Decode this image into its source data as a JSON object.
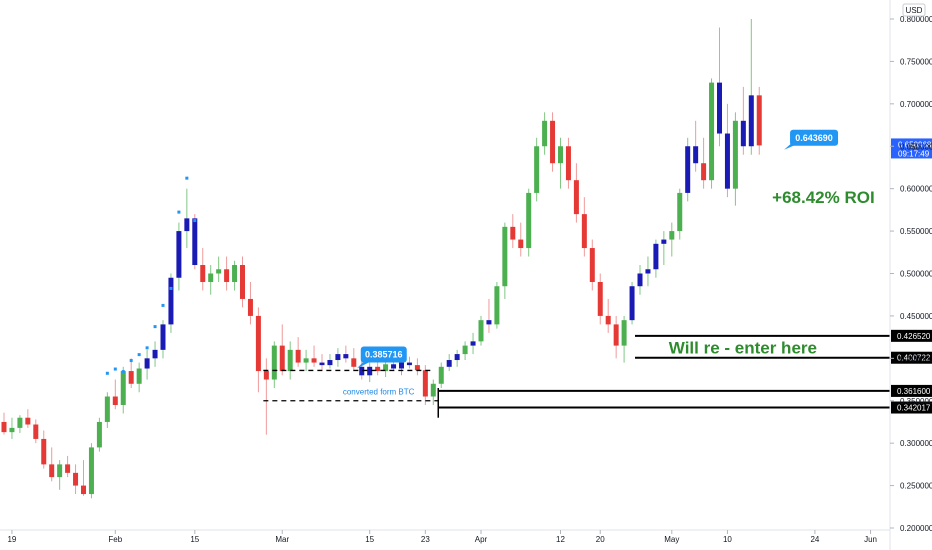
{
  "chart_data": {
    "type": "candlestick",
    "currency": "USD",
    "y_axis": {
      "min": 0.2,
      "max": 0.82,
      "ticks": [
        "0.800000",
        "0.750000",
        "0.700000",
        "0.650000",
        "0.600000",
        "0.550000",
        "0.500000",
        "0.450000",
        "0.400000",
        "0.350000",
        "0.300000",
        "0.250000",
        "0.200000"
      ]
    },
    "x_axis": {
      "ticks": [
        {
          "label": "19",
          "index": 1
        },
        {
          "label": "Feb",
          "index": 14
        },
        {
          "label": "15",
          "index": 24
        },
        {
          "label": "Mar",
          "index": 35
        },
        {
          "label": "15",
          "index": 46
        },
        {
          "label": "23",
          "index": 53
        },
        {
          "label": "Apr",
          "index": 60
        },
        {
          "label": "12",
          "index": 70
        },
        {
          "label": "20",
          "index": 75
        },
        {
          "label": "May",
          "index": 84
        },
        {
          "label": "10",
          "index": 91
        },
        {
          "label": "24",
          "index": 102
        },
        {
          "label": "Jun",
          "index": 109
        }
      ],
      "bar_count": 112
    },
    "colors": {
      "up": "#4caf50",
      "down": "#e53935",
      "up_ha": "#1a1ab5",
      "wick": "#81c784",
      "wick_down": "#ef9a9a",
      "annotation_blue": "#2196f3",
      "roi_green": "#2e8b2e",
      "price_tag": "#2962ff"
    },
    "candles": [
      [
        0.325,
        0.336,
        0.31,
        0.313
      ],
      [
        0.313,
        0.33,
        0.305,
        0.318
      ],
      [
        0.318,
        0.333,
        0.312,
        0.33
      ],
      [
        0.33,
        0.34,
        0.318,
        0.322
      ],
      [
        0.322,
        0.328,
        0.3,
        0.305
      ],
      [
        0.305,
        0.315,
        0.27,
        0.275
      ],
      [
        0.275,
        0.295,
        0.255,
        0.26
      ],
      [
        0.26,
        0.28,
        0.245,
        0.275
      ],
      [
        0.275,
        0.285,
        0.26,
        0.265
      ],
      [
        0.265,
        0.275,
        0.24,
        0.25
      ],
      [
        0.25,
        0.28,
        0.238,
        0.24
      ],
      [
        0.24,
        0.3,
        0.235,
        0.295
      ],
      [
        0.295,
        0.33,
        0.29,
        0.325
      ],
      [
        0.325,
        0.36,
        0.318,
        0.355
      ],
      [
        0.355,
        0.375,
        0.34,
        0.345
      ],
      [
        0.345,
        0.39,
        0.335,
        0.385
      ],
      [
        0.385,
        0.4,
        0.365,
        0.37
      ],
      [
        0.37,
        0.395,
        0.36,
        0.388
      ],
      [
        0.388,
        0.41,
        0.375,
        0.4
      ],
      [
        0.4,
        0.42,
        0.39,
        0.41
      ],
      [
        0.41,
        0.445,
        0.4,
        0.44
      ],
      [
        0.44,
        0.5,
        0.43,
        0.495
      ],
      [
        0.495,
        0.56,
        0.48,
        0.55
      ],
      [
        0.55,
        0.6,
        0.53,
        0.565
      ],
      [
        0.565,
        0.57,
        0.505,
        0.51
      ],
      [
        0.51,
        0.53,
        0.48,
        0.49
      ],
      [
        0.49,
        0.51,
        0.475,
        0.5
      ],
      [
        0.5,
        0.52,
        0.49,
        0.505
      ],
      [
        0.505,
        0.52,
        0.48,
        0.49
      ],
      [
        0.49,
        0.515,
        0.48,
        0.51
      ],
      [
        0.51,
        0.52,
        0.46,
        0.47
      ],
      [
        0.47,
        0.49,
        0.44,
        0.45
      ],
      [
        0.45,
        0.46,
        0.36,
        0.385
      ],
      [
        0.385,
        0.4,
        0.31,
        0.375
      ],
      [
        0.375,
        0.42,
        0.365,
        0.415
      ],
      [
        0.415,
        0.44,
        0.38,
        0.385
      ],
      [
        0.385,
        0.42,
        0.375,
        0.41
      ],
      [
        0.41,
        0.425,
        0.39,
        0.395
      ],
      [
        0.395,
        0.41,
        0.385,
        0.4
      ],
      [
        0.4,
        0.415,
        0.39,
        0.395
      ],
      [
        0.395,
        0.405,
        0.385,
        0.392
      ],
      [
        0.392,
        0.405,
        0.388,
        0.398
      ],
      [
        0.398,
        0.412,
        0.39,
        0.405
      ],
      [
        0.405,
        0.415,
        0.395,
        0.4
      ],
      [
        0.4,
        0.412,
        0.385,
        0.39
      ],
      [
        0.39,
        0.4,
        0.375,
        0.38
      ],
      [
        0.38,
        0.395,
        0.372,
        0.39
      ],
      [
        0.39,
        0.4,
        0.38,
        0.385
      ],
      [
        0.385,
        0.398,
        0.378,
        0.393
      ],
      [
        0.393,
        0.405,
        0.385,
        0.388
      ],
      [
        0.388,
        0.4,
        0.38,
        0.395
      ],
      [
        0.395,
        0.402,
        0.388,
        0.392
      ],
      [
        0.392,
        0.4,
        0.38,
        0.386
      ],
      [
        0.386,
        0.392,
        0.345,
        0.355
      ],
      [
        0.355,
        0.375,
        0.345,
        0.37
      ],
      [
        0.37,
        0.395,
        0.365,
        0.39
      ],
      [
        0.39,
        0.405,
        0.385,
        0.398
      ],
      [
        0.398,
        0.41,
        0.39,
        0.405
      ],
      [
        0.405,
        0.42,
        0.398,
        0.415
      ],
      [
        0.415,
        0.43,
        0.405,
        0.42
      ],
      [
        0.42,
        0.45,
        0.415,
        0.445
      ],
      [
        0.445,
        0.47,
        0.43,
        0.44
      ],
      [
        0.44,
        0.49,
        0.435,
        0.485
      ],
      [
        0.485,
        0.56,
        0.47,
        0.555
      ],
      [
        0.555,
        0.57,
        0.53,
        0.54
      ],
      [
        0.54,
        0.56,
        0.52,
        0.53
      ],
      [
        0.53,
        0.6,
        0.52,
        0.595
      ],
      [
        0.595,
        0.66,
        0.585,
        0.65
      ],
      [
        0.65,
        0.69,
        0.64,
        0.68
      ],
      [
        0.68,
        0.69,
        0.62,
        0.63
      ],
      [
        0.63,
        0.66,
        0.6,
        0.65
      ],
      [
        0.65,
        0.66,
        0.6,
        0.61
      ],
      [
        0.61,
        0.63,
        0.56,
        0.57
      ],
      [
        0.57,
        0.59,
        0.52,
        0.53
      ],
      [
        0.53,
        0.54,
        0.48,
        0.49
      ],
      [
        0.49,
        0.5,
        0.44,
        0.45
      ],
      [
        0.45,
        0.47,
        0.43,
        0.44
      ],
      [
        0.44,
        0.45,
        0.4,
        0.415
      ],
      [
        0.415,
        0.45,
        0.395,
        0.445
      ],
      [
        0.445,
        0.49,
        0.44,
        0.485
      ],
      [
        0.485,
        0.51,
        0.475,
        0.5
      ],
      [
        0.5,
        0.52,
        0.485,
        0.505
      ],
      [
        0.505,
        0.54,
        0.495,
        0.535
      ],
      [
        0.535,
        0.55,
        0.51,
        0.54
      ],
      [
        0.54,
        0.56,
        0.52,
        0.55
      ],
      [
        0.55,
        0.6,
        0.54,
        0.595
      ],
      [
        0.595,
        0.66,
        0.585,
        0.65
      ],
      [
        0.65,
        0.68,
        0.62,
        0.63
      ],
      [
        0.63,
        0.66,
        0.6,
        0.61
      ],
      [
        0.61,
        0.73,
        0.6,
        0.725
      ],
      [
        0.725,
        0.79,
        0.65,
        0.665
      ],
      [
        0.665,
        0.7,
        0.59,
        0.6
      ],
      [
        0.6,
        0.69,
        0.58,
        0.68
      ],
      [
        0.68,
        0.72,
        0.64,
        0.65
      ],
      [
        0.65,
        0.8,
        0.64,
        0.71
      ],
      [
        0.71,
        0.72,
        0.64,
        0.651
      ]
    ],
    "ha_markers": [
      {
        "i": 13,
        "price": 0.37
      },
      {
        "i": 14,
        "price": 0.375
      },
      {
        "i": 15,
        "price": 0.372
      },
      {
        "i": 16,
        "price": 0.385
      },
      {
        "i": 17,
        "price": 0.392
      },
      {
        "i": 18,
        "price": 0.4
      },
      {
        "i": 19,
        "price": 0.425
      },
      {
        "i": 20,
        "price": 0.45
      },
      {
        "i": 21,
        "price": 0.47
      },
      {
        "i": 22,
        "price": 0.56
      },
      {
        "i": 23,
        "price": 0.6
      },
      {
        "i": 24,
        "price": 0.55
      }
    ],
    "current_price": "0.650968",
    "countdown": "09:17:49",
    "levels": [
      {
        "price": 0.42652,
        "label": "0.426520"
      },
      {
        "price": 0.400722,
        "label": "0.400722"
      },
      {
        "price": 0.3616,
        "label": "0.361600"
      },
      {
        "price": 0.342017,
        "label": "0.342017"
      }
    ],
    "annotations": {
      "roi": "+68.42% ROI",
      "reenter": "Will re - enter here",
      "converted": "converted form BTC",
      "callout_entry": "0.385716",
      "callout_exit": "0.643690"
    }
  }
}
